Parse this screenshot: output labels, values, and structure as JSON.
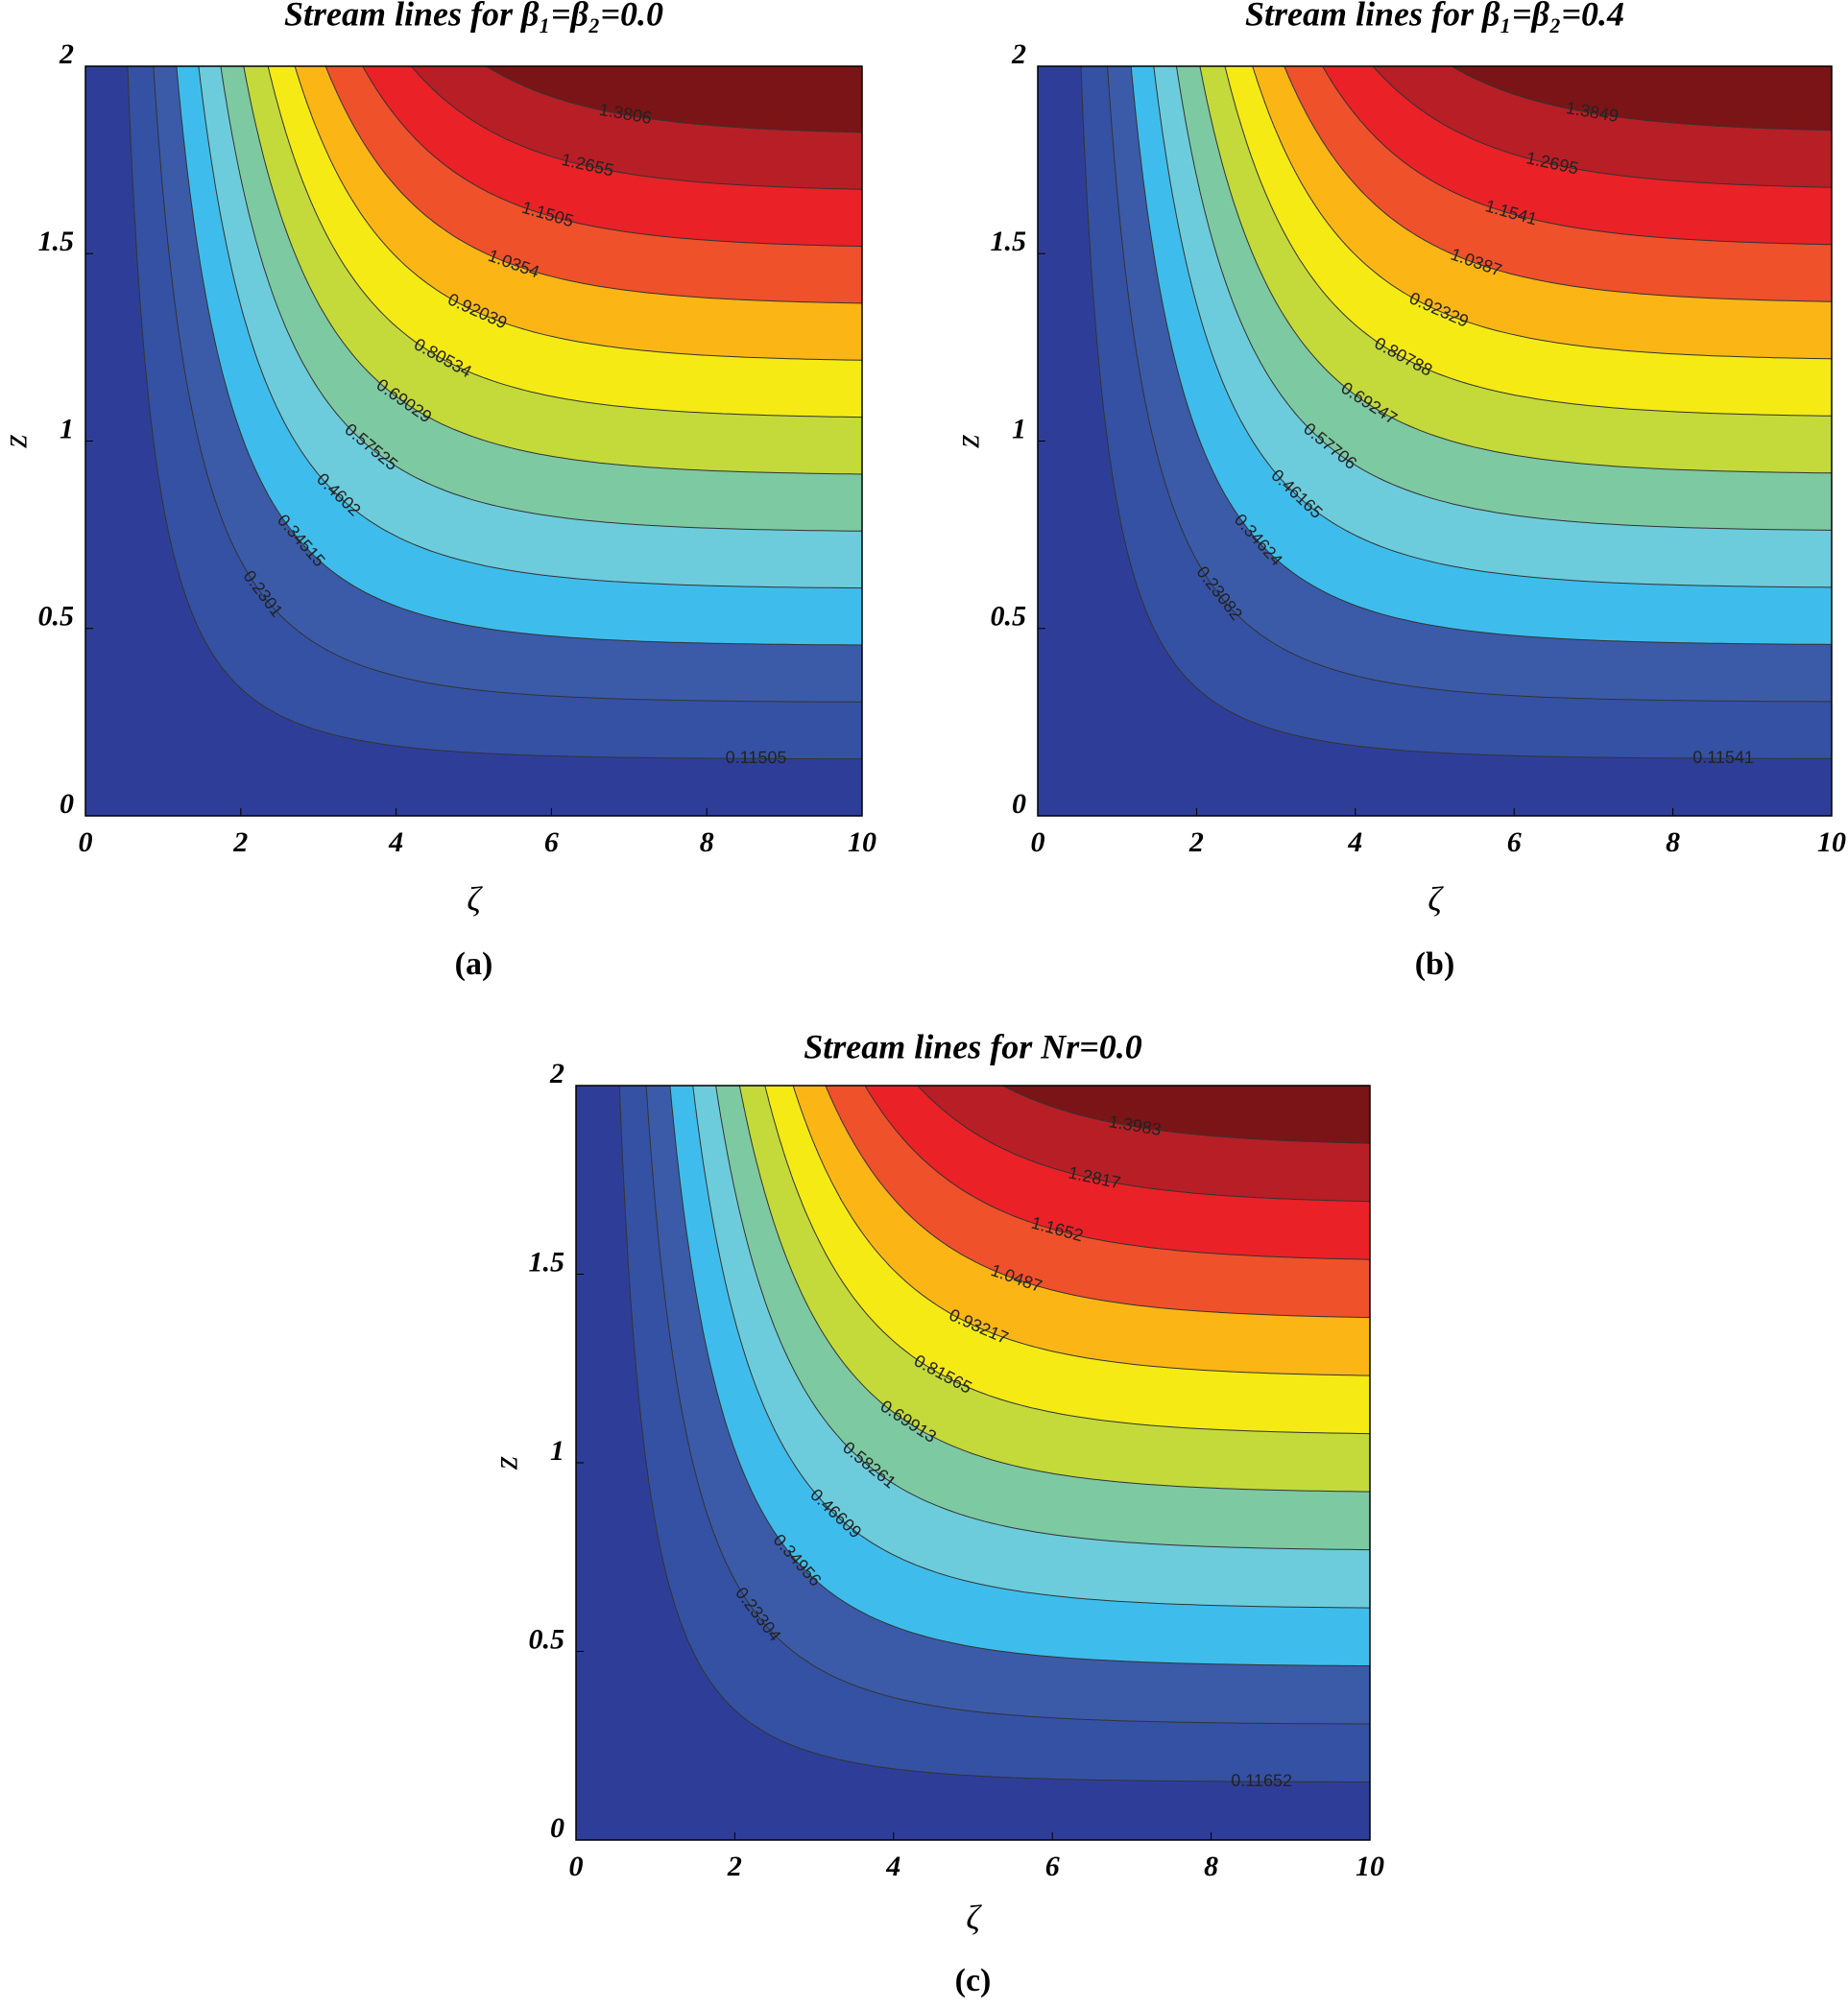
{
  "chart_data": [
    {
      "type": "contour",
      "title": "Stream lines for β₁=β₂=0.0",
      "xlabel": "ζ",
      "ylabel": "z",
      "caption": "(a)",
      "levels": [
        0.11505,
        0.2301,
        0.34515,
        0.4602,
        0.57525,
        0.69029,
        0.80534,
        0.92039,
        1.0354,
        1.1505,
        1.2655,
        1.3806
      ],
      "colors": [
        "#2e3e98",
        "#3451a3",
        "#3b5ba9",
        "#3ebdec",
        "#6cccdc",
        "#7dc9a2",
        "#c3da3a",
        "#f5ea14",
        "#fbb615",
        "#ef512a",
        "#ea2127",
        "#b81e25",
        "#7b1416"
      ],
      "xlim": [
        0,
        10
      ],
      "ylim": [
        0,
        2
      ],
      "xticks": [
        0,
        2,
        4,
        6,
        8,
        10
      ],
      "yticks": [
        0,
        0.5,
        1,
        1.5,
        2
      ]
    },
    {
      "type": "contour",
      "title": "Stream lines for β₁=β₂=0.4",
      "xlabel": "ζ",
      "ylabel": "z",
      "caption": "(b)",
      "levels": [
        0.11541,
        0.23082,
        0.34624,
        0.46165,
        0.57706,
        0.69247,
        0.80788,
        0.92329,
        1.0387,
        1.1541,
        1.2695,
        1.3849
      ],
      "colors": [
        "#2e3e98",
        "#3451a3",
        "#3b5ba9",
        "#3ebdec",
        "#6cccdc",
        "#7dc9a2",
        "#c3da3a",
        "#f5ea14",
        "#fbb615",
        "#ef512a",
        "#ea2127",
        "#b81e25",
        "#7b1416"
      ],
      "xlim": [
        0,
        10
      ],
      "ylim": [
        0,
        2
      ],
      "xticks": [
        0,
        2,
        4,
        6,
        8,
        10
      ],
      "yticks": [
        0,
        0.5,
        1,
        1.5,
        2
      ]
    },
    {
      "type": "contour",
      "title": "Stream lines for Nr=0.0",
      "xlabel": "ζ",
      "ylabel": "z",
      "caption": "(c)",
      "levels": [
        0.11652,
        0.23304,
        0.34956,
        0.46609,
        0.58261,
        0.69913,
        0.81565,
        0.93217,
        1.0487,
        1.1652,
        1.2817,
        1.3983
      ],
      "colors": [
        "#2e3e98",
        "#3451a3",
        "#3b5ba9",
        "#3ebdec",
        "#6cccdc",
        "#7dc9a2",
        "#c3da3a",
        "#f5ea14",
        "#fbb615",
        "#ef512a",
        "#ea2127",
        "#b81e25",
        "#7b1416"
      ],
      "xlim": [
        0,
        10
      ],
      "ylim": [
        0,
        2
      ],
      "xticks": [
        0,
        2,
        4,
        6,
        8,
        10
      ],
      "yticks": [
        0,
        0.5,
        1,
        1.5,
        2
      ]
    }
  ]
}
